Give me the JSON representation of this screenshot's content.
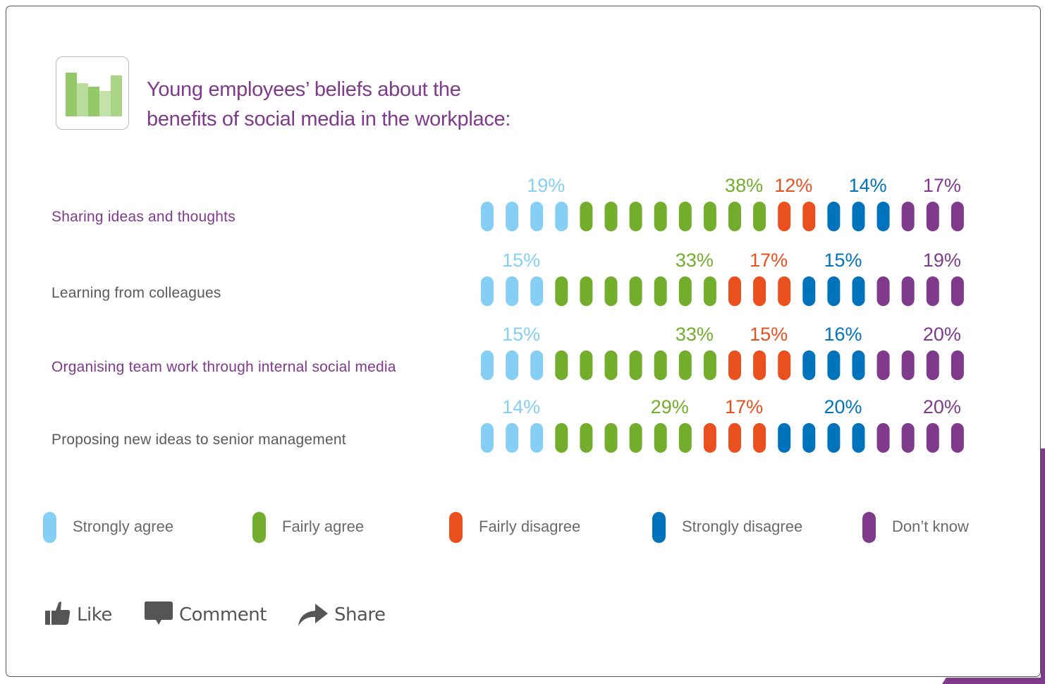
{
  "header": {
    "title_line1": "Young employees’ beliefs about the",
    "title_line2": "benefits of social media in the workplace:",
    "logo_icon": "bar-chart-icon"
  },
  "colors": {
    "strongly_agree": "#85cff4",
    "fairly_agree": "#72ad2b",
    "fairly_disagree": "#e9501e",
    "strongly_disagree": "#0073bc",
    "dont_know": "#7f3a8c",
    "title": "#7f3a8c",
    "label_gray": "#5a5a5a"
  },
  "chart_data": {
    "type": "bar",
    "subtype": "stacked-pictogram",
    "title": "Young employees’ beliefs about the benefits of social media in the workplace:",
    "units_per_row": 20,
    "categories": [
      "Sharing ideas and thoughts",
      "Learning from colleagues",
      "Organising team work through internal social media",
      "Proposing new ideas to senior management"
    ],
    "category_label_colors": [
      "#7f3a8c",
      "#5a5a5a",
      "#7f3a8c",
      "#5a5a5a"
    ],
    "series": [
      {
        "key": "strongly_agree",
        "name": "Strongly agree",
        "values": [
          19,
          15,
          15,
          14
        ],
        "pills": [
          4,
          3,
          3,
          3
        ]
      },
      {
        "key": "fairly_agree",
        "name": "Fairly agree",
        "values": [
          38,
          33,
          33,
          29
        ],
        "pills": [
          8,
          7,
          7,
          6
        ]
      },
      {
        "key": "fairly_disagree",
        "name": "Fairly disagree",
        "values": [
          12,
          17,
          15,
          17
        ],
        "pills": [
          2,
          3,
          3,
          3
        ]
      },
      {
        "key": "strongly_disagree",
        "name": "Strongly disagree",
        "values": [
          14,
          15,
          16,
          20
        ],
        "pills": [
          3,
          3,
          3,
          4
        ]
      },
      {
        "key": "dont_know",
        "name": "Don’t know",
        "values": [
          17,
          19,
          20,
          20
        ],
        "pills": [
          3,
          4,
          4,
          4
        ]
      }
    ],
    "value_suffix": "%",
    "legend_position": "bottom"
  },
  "legend": [
    {
      "label": "Strongly agree",
      "color_key": "strongly_agree"
    },
    {
      "label": "Fairly agree",
      "color_key": "fairly_agree"
    },
    {
      "label": "Fairly disagree",
      "color_key": "fairly_disagree"
    },
    {
      "label": "Strongly disagree",
      "color_key": "strongly_disagree"
    },
    {
      "label": "Don’t know",
      "color_key": "dont_know"
    }
  ],
  "actions": {
    "like": {
      "label": "Like",
      "icon": "thumbs-up-icon"
    },
    "comment": {
      "label": "Comment",
      "icon": "speech-bubble-icon"
    },
    "share": {
      "label": "Share",
      "icon": "share-arrow-icon"
    }
  }
}
